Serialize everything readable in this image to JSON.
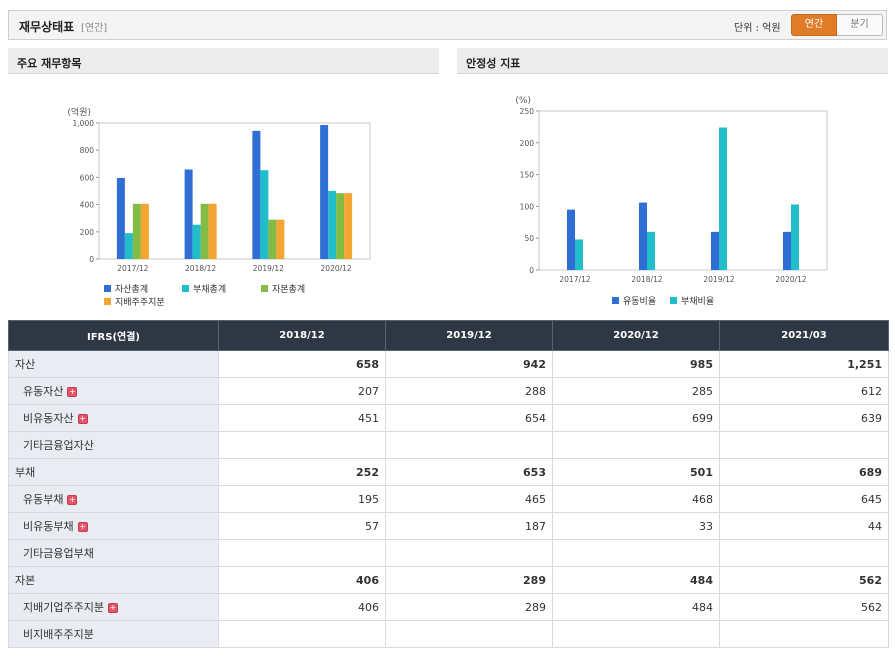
{
  "header": {
    "title": "재무상태표",
    "subtitle": "[연간]",
    "unit": "단위 : 억원",
    "toggle_annual": "연간",
    "toggle_quarter": "분기"
  },
  "panels": {
    "left_title": "주요 재무항목",
    "right_title": "안정성 지표"
  },
  "chart_data": [
    {
      "type": "bar",
      "ylabel": "(억원)",
      "ylim": [
        0,
        1000
      ],
      "yticks": [
        "0",
        "200",
        "400",
        "600",
        "800",
        "1,000"
      ],
      "categories": [
        "2017/12",
        "2018/12",
        "2019/12",
        "2020/12"
      ],
      "series": [
        {
          "name": "자산총계",
          "color": "#2f6fd3",
          "values": [
            596,
            658,
            942,
            985
          ]
        },
        {
          "name": "부채총계",
          "color": "#21bdc9",
          "values": [
            190,
            252,
            653,
            501
          ]
        },
        {
          "name": "자본총계",
          "color": "#84bb45",
          "values": [
            406,
            406,
            289,
            484
          ]
        },
        {
          "name": "지배주주지분",
          "color": "#f5a531",
          "values": [
            406,
            406,
            289,
            484
          ]
        }
      ],
      "grid": false,
      "legend": "bottom"
    },
    {
      "type": "bar",
      "ylabel": "(%)",
      "ylim": [
        0,
        250
      ],
      "yticks": [
        "0",
        "50",
        "100",
        "150",
        "200",
        "250"
      ],
      "categories": [
        "2017/12",
        "2018/12",
        "2019/12",
        "2020/12"
      ],
      "series": [
        {
          "name": "유동비율",
          "color": "#2f6fd3",
          "values": [
            95,
            106,
            60,
            60
          ]
        },
        {
          "name": "부채비율",
          "color": "#21bdc9",
          "values": [
            48,
            60,
            224,
            103
          ]
        }
      ],
      "grid": false,
      "legend": "bottom"
    }
  ],
  "table": {
    "header": [
      "IFRS(연결)",
      "2018/12",
      "2019/12",
      "2020/12",
      "2021/03"
    ],
    "rows": [
      {
        "label": "자산",
        "level": "main",
        "plus": false,
        "values": [
          "658",
          "942",
          "985",
          "1,251"
        ]
      },
      {
        "label": "유동자산",
        "level": "sub",
        "plus": true,
        "values": [
          "207",
          "288",
          "285",
          "612"
        ]
      },
      {
        "label": "비유동자산",
        "level": "sub",
        "plus": true,
        "values": [
          "451",
          "654",
          "699",
          "639"
        ]
      },
      {
        "label": "기타금융업자산",
        "level": "sub",
        "plus": false,
        "values": [
          "",
          "",
          "",
          ""
        ]
      },
      {
        "label": "부채",
        "level": "main",
        "plus": false,
        "values": [
          "252",
          "653",
          "501",
          "689"
        ]
      },
      {
        "label": "유동부채",
        "level": "sub",
        "plus": true,
        "values": [
          "195",
          "465",
          "468",
          "645"
        ]
      },
      {
        "label": "비유동부채",
        "level": "sub",
        "plus": true,
        "values": [
          "57",
          "187",
          "33",
          "44"
        ]
      },
      {
        "label": "기타금융업부채",
        "level": "sub",
        "plus": false,
        "values": [
          "",
          "",
          "",
          ""
        ]
      },
      {
        "label": "자본",
        "level": "main",
        "plus": false,
        "values": [
          "406",
          "289",
          "484",
          "562"
        ]
      },
      {
        "label": "지배기업주주지분",
        "level": "sub",
        "plus": true,
        "values": [
          "406",
          "289",
          "484",
          "562"
        ]
      },
      {
        "label": "비지배주주지분",
        "level": "sub",
        "plus": false,
        "values": [
          "",
          "",
          "",
          ""
        ]
      }
    ]
  }
}
